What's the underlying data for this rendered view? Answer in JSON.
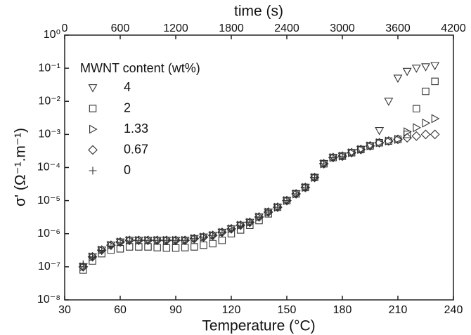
{
  "chart_data": {
    "type": "scatter",
    "x_label": "Temperature (°C)",
    "x2_label": "time (s)",
    "y_label": "σ' (Ω⁻¹.m⁻¹)",
    "legend_title": "MWNT content (wt%)",
    "legend": "upper left",
    "log_y": true,
    "xlim": [
      30,
      240
    ],
    "xticks": [
      30,
      60,
      90,
      120,
      150,
      180,
      210,
      240
    ],
    "x2lim": [
      0,
      4200
    ],
    "x2ticks": [
      0,
      600,
      1200,
      1800,
      2400,
      3000,
      3600,
      4200
    ],
    "ylim": [
      1e-08,
      1
    ],
    "yticks": [
      {
        "value": 1e-08,
        "label": "10⁻⁸"
      },
      {
        "value": 1e-07,
        "label": "10⁻⁷"
      },
      {
        "value": 1e-06,
        "label": "10⁻⁶"
      },
      {
        "value": 1e-05,
        "label": "10⁻⁵"
      },
      {
        "value": 0.0001,
        "label": "10⁻⁴"
      },
      {
        "value": 0.001,
        "label": "10⁻³"
      },
      {
        "value": 0.01,
        "label": "10⁻²"
      },
      {
        "value": 0.1,
        "label": "10⁻¹"
      },
      {
        "value": 1,
        "label": "10⁰"
      }
    ],
    "x": [
      40,
      45,
      50,
      55,
      60,
      65,
      70,
      75,
      80,
      85,
      90,
      95,
      100,
      105,
      110,
      115,
      120,
      125,
      130,
      135,
      140,
      145,
      150,
      155,
      160,
      165,
      170,
      175,
      180,
      185,
      190,
      195,
      200,
      205,
      210,
      215,
      220,
      225,
      230
    ],
    "series": [
      {
        "name": "4",
        "marker": "triangle-down",
        "color": "#333333",
        "values": [
          1e-07,
          2e-07,
          3.2e-07,
          4.5e-07,
          5.6e-07,
          6.3e-07,
          6.3e-07,
          6.3e-07,
          6.3e-07,
          6.3e-07,
          6.3e-07,
          6.3e-07,
          7.1e-07,
          7.9e-07,
          8.9e-07,
          1.1e-06,
          1.4e-06,
          1.8e-06,
          2.2e-06,
          3.2e-06,
          4.5e-06,
          6.3e-06,
          1e-05,
          1.6e-05,
          2.5e-05,
          5e-05,
          0.00013,
          0.0002,
          0.00022,
          0.00028,
          0.00035,
          0.00045,
          0.0013,
          0.01,
          0.05,
          0.08,
          0.1,
          0.11,
          0.12
        ]
      },
      {
        "name": "2",
        "marker": "square",
        "color": "#333333",
        "values": [
          8e-08,
          1.5e-07,
          2.5e-07,
          3.2e-07,
          3.5e-07,
          4e-07,
          4e-07,
          4e-07,
          3.8e-07,
          3.7e-07,
          3.7e-07,
          3.8e-07,
          4e-07,
          4.5e-07,
          5e-07,
          6.3e-07,
          1e-06,
          1.3e-06,
          1.8e-06,
          2.5e-06,
          4e-06,
          6.3e-06,
          1e-05,
          1.6e-05,
          2.5e-05,
          5e-05,
          0.00013,
          0.0002,
          0.00022,
          0.00028,
          0.00035,
          0.00045,
          0.00056,
          0.00063,
          0.00071,
          0.001,
          0.006,
          0.02,
          0.04
        ]
      },
      {
        "name": "1.33",
        "marker": "triangle-right",
        "color": "#333333",
        "values": [
          1e-07,
          2e-07,
          3.2e-07,
          4.5e-07,
          5.6e-07,
          6.3e-07,
          6.3e-07,
          6.3e-07,
          6.3e-07,
          6.3e-07,
          6.3e-07,
          6.3e-07,
          7.1e-07,
          7.9e-07,
          8.9e-07,
          1.1e-06,
          1.4e-06,
          1.8e-06,
          2.2e-06,
          3.2e-06,
          4.5e-06,
          6.3e-06,
          1e-05,
          1.6e-05,
          2.5e-05,
          5e-05,
          0.00013,
          0.0002,
          0.00022,
          0.00028,
          0.00035,
          0.00045,
          0.00056,
          0.00063,
          0.00071,
          0.0012,
          0.0016,
          0.0022,
          0.003
        ]
      },
      {
        "name": "0.67",
        "marker": "diamond",
        "color": "#333333",
        "values": [
          1e-07,
          2e-07,
          3.2e-07,
          4.5e-07,
          5.6e-07,
          6.3e-07,
          6.3e-07,
          6.3e-07,
          6.3e-07,
          6.3e-07,
          6.3e-07,
          6.3e-07,
          7.1e-07,
          7.9e-07,
          8.9e-07,
          1.1e-06,
          1.4e-06,
          1.8e-06,
          2.2e-06,
          3.2e-06,
          4.5e-06,
          6.3e-06,
          1e-05,
          1.6e-05,
          2.5e-05,
          5e-05,
          0.00013,
          0.0002,
          0.00022,
          0.00028,
          0.00035,
          0.00045,
          0.00056,
          0.00063,
          0.00071,
          0.00079,
          0.00089,
          0.001,
          0.001
        ]
      },
      {
        "name": "0",
        "marker": "plus",
        "color": "#333333",
        "values": [
          1.2e-07,
          2e-07,
          3e-07,
          4.2e-07,
          5.3e-07,
          6e-07,
          6.3e-07,
          6.3e-07,
          6.3e-07,
          6.3e-07,
          6.3e-07,
          6.3e-07,
          7.1e-07,
          7.9e-07,
          8.9e-07,
          1.1e-06,
          1.4e-06,
          1.8e-06,
          2.2e-06,
          3.2e-06,
          4.5e-06,
          6.3e-06,
          1e-05,
          1.6e-05,
          2.5e-05,
          5e-05,
          0.00013,
          0.0002,
          0.00022,
          null,
          null,
          null,
          null,
          null,
          null,
          null,
          null,
          null,
          null
        ]
      }
    ]
  }
}
